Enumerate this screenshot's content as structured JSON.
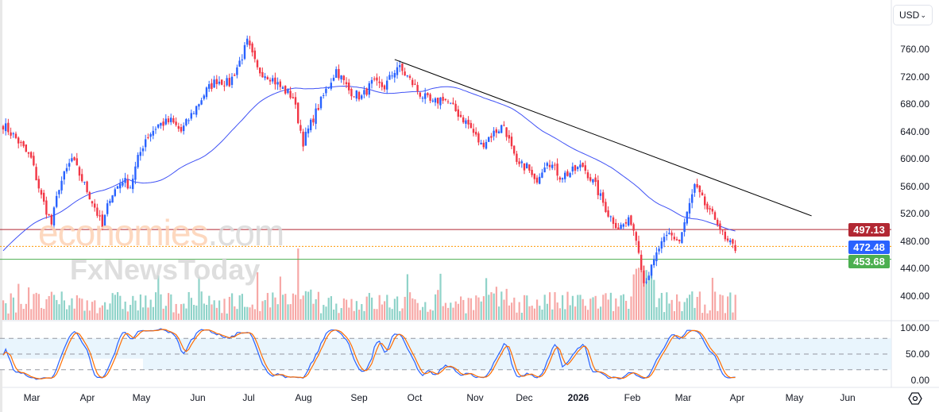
{
  "toolbar": {
    "currency": "USD"
  },
  "watermark": {
    "line1a": "economies",
    "line1b": ".com",
    "line2": "FxNewsToday"
  },
  "price_axis": [
    "760.00",
    "720.00",
    "680.00",
    "640.00",
    "600.00",
    "560.00",
    "520.00",
    "480.00",
    "440.00",
    "400.00"
  ],
  "stoch_axis": [
    "100.00",
    "50.00",
    "0.00"
  ],
  "time_axis": [
    "Mar",
    "Apr",
    "May",
    "Jun",
    "Jul",
    "Aug",
    "Sep",
    "Oct",
    "Nov",
    "Dec",
    "2026",
    "Feb",
    "Mar",
    "Apr",
    "May",
    "Jun"
  ],
  "tags": {
    "resistance": "497.13",
    "last": "472.48",
    "support": "453.68"
  },
  "colors": {
    "up": "#2962ff",
    "down": "#f23645",
    "ma": "#3f51f5",
    "stochK": "#2962ff",
    "stochD": "#ff6d00",
    "resistance": "#b22833",
    "support": "#4caf50",
    "last": "#2962ff"
  },
  "chart_data": {
    "type": "candlestick",
    "ylim": [
      370,
      790
    ],
    "levels": {
      "resistance": 497.13,
      "last": 472.48,
      "support": 453.68
    },
    "trendline": {
      "from": [
        154,
        745
      ],
      "to": [
        318,
        517
      ]
    },
    "keypoints": [
      [
        0,
        650
      ],
      [
        5,
        630
      ],
      [
        11,
        600
      ],
      [
        15,
        545
      ],
      [
        19,
        505
      ],
      [
        22,
        560
      ],
      [
        27,
        600
      ],
      [
        31,
        570
      ],
      [
        36,
        530
      ],
      [
        39,
        500
      ],
      [
        42,
        545
      ],
      [
        47,
        570
      ],
      [
        50,
        560
      ],
      [
        53,
        600
      ],
      [
        56,
        630
      ],
      [
        61,
        650
      ],
      [
        66,
        655
      ],
      [
        70,
        640
      ],
      [
        75,
        670
      ],
      [
        80,
        700
      ],
      [
        84,
        715
      ],
      [
        89,
        710
      ],
      [
        94,
        750
      ],
      [
        96,
        770
      ],
      [
        100,
        730
      ],
      [
        105,
        720
      ],
      [
        109,
        705
      ],
      [
        114,
        690
      ],
      [
        118,
        625
      ],
      [
        122,
        660
      ],
      [
        127,
        700
      ],
      [
        131,
        730
      ],
      [
        136,
        700
      ],
      [
        141,
        690
      ],
      [
        145,
        710
      ],
      [
        150,
        705
      ],
      [
        155,
        735
      ],
      [
        159,
        720
      ],
      [
        164,
        695
      ],
      [
        169,
        680
      ],
      [
        173,
        690
      ],
      [
        178,
        670
      ],
      [
        183,
        650
      ],
      [
        188,
        620
      ],
      [
        192,
        635
      ],
      [
        197,
        650
      ],
      [
        202,
        590
      ],
      [
        206,
        590
      ],
      [
        209,
        565
      ],
      [
        214,
        600
      ],
      [
        219,
        575
      ],
      [
        223,
        580
      ],
      [
        228,
        590
      ],
      [
        233,
        560
      ],
      [
        238,
        520
      ],
      [
        242,
        500
      ],
      [
        247,
        510
      ],
      [
        250,
        470
      ],
      [
        252,
        420
      ],
      [
        255,
        440
      ],
      [
        258,
        470
      ],
      [
        262,
        490
      ],
      [
        266,
        480
      ],
      [
        269,
        520
      ],
      [
        272,
        560
      ],
      [
        275,
        540
      ],
      [
        278,
        520
      ],
      [
        281,
        510
      ],
      [
        284,
        480
      ],
      [
        288,
        470
      ]
    ]
  }
}
